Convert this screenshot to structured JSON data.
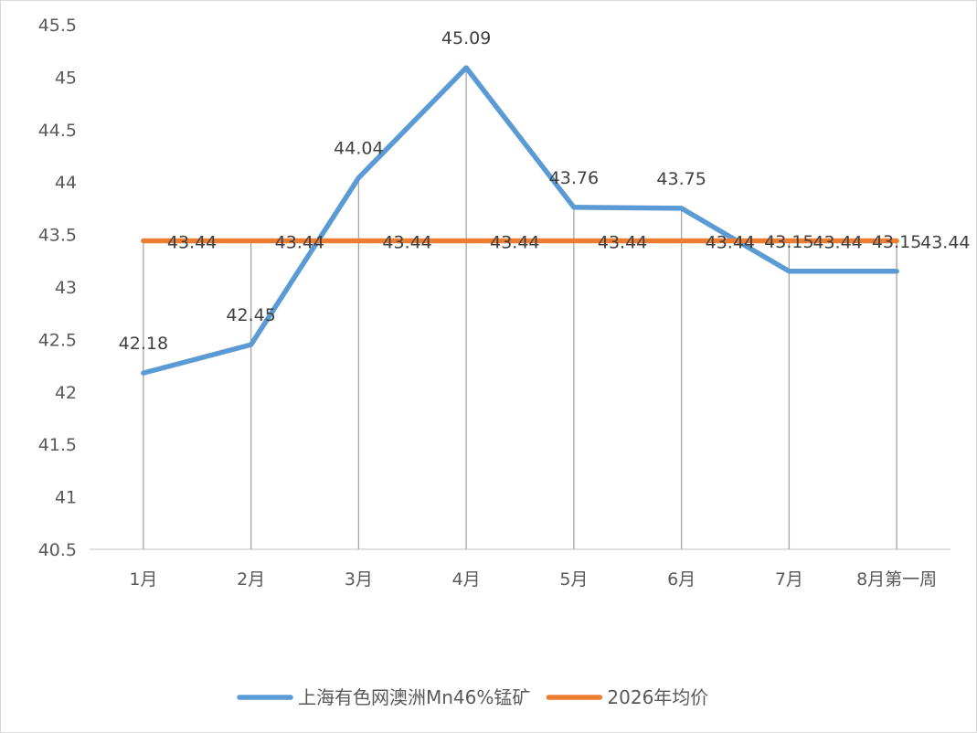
{
  "chart_data": {
    "type": "line",
    "categories": [
      "1月",
      "2月",
      "3月",
      "4月",
      "5月",
      "6月",
      "7月",
      "8月第一周"
    ],
    "series": [
      {
        "name": "上海有色网澳洲Mn46%锰矿",
        "values": [
          42.18,
          42.45,
          44.04,
          45.09,
          43.76,
          43.75,
          43.15,
          43.15
        ],
        "labels": [
          "42.18",
          "42.45",
          "44.04",
          "45.09",
          "43.76",
          "43.75",
          "43.15",
          "43.15"
        ],
        "color": "#5b9bd5"
      },
      {
        "name": "2026年均价",
        "values": [
          43.44,
          43.44,
          43.44,
          43.44,
          43.44,
          43.44,
          43.44,
          43.44
        ],
        "labels": [
          "43.44",
          "43.44",
          "43.44",
          "43.44",
          "43.44",
          "43.44",
          "43.44",
          "43.44"
        ],
        "color": "#ed7d31"
      }
    ],
    "ylim": [
      40.5,
      45.5
    ],
    "yticks": [
      "40.5",
      "41",
      "41.5",
      "42",
      "42.5",
      "43",
      "43.5",
      "44",
      "44.5",
      "45",
      "45.5"
    ],
    "drop_lines": true,
    "legend": "bottom",
    "title": "",
    "xlabel": "",
    "ylabel": ""
  }
}
